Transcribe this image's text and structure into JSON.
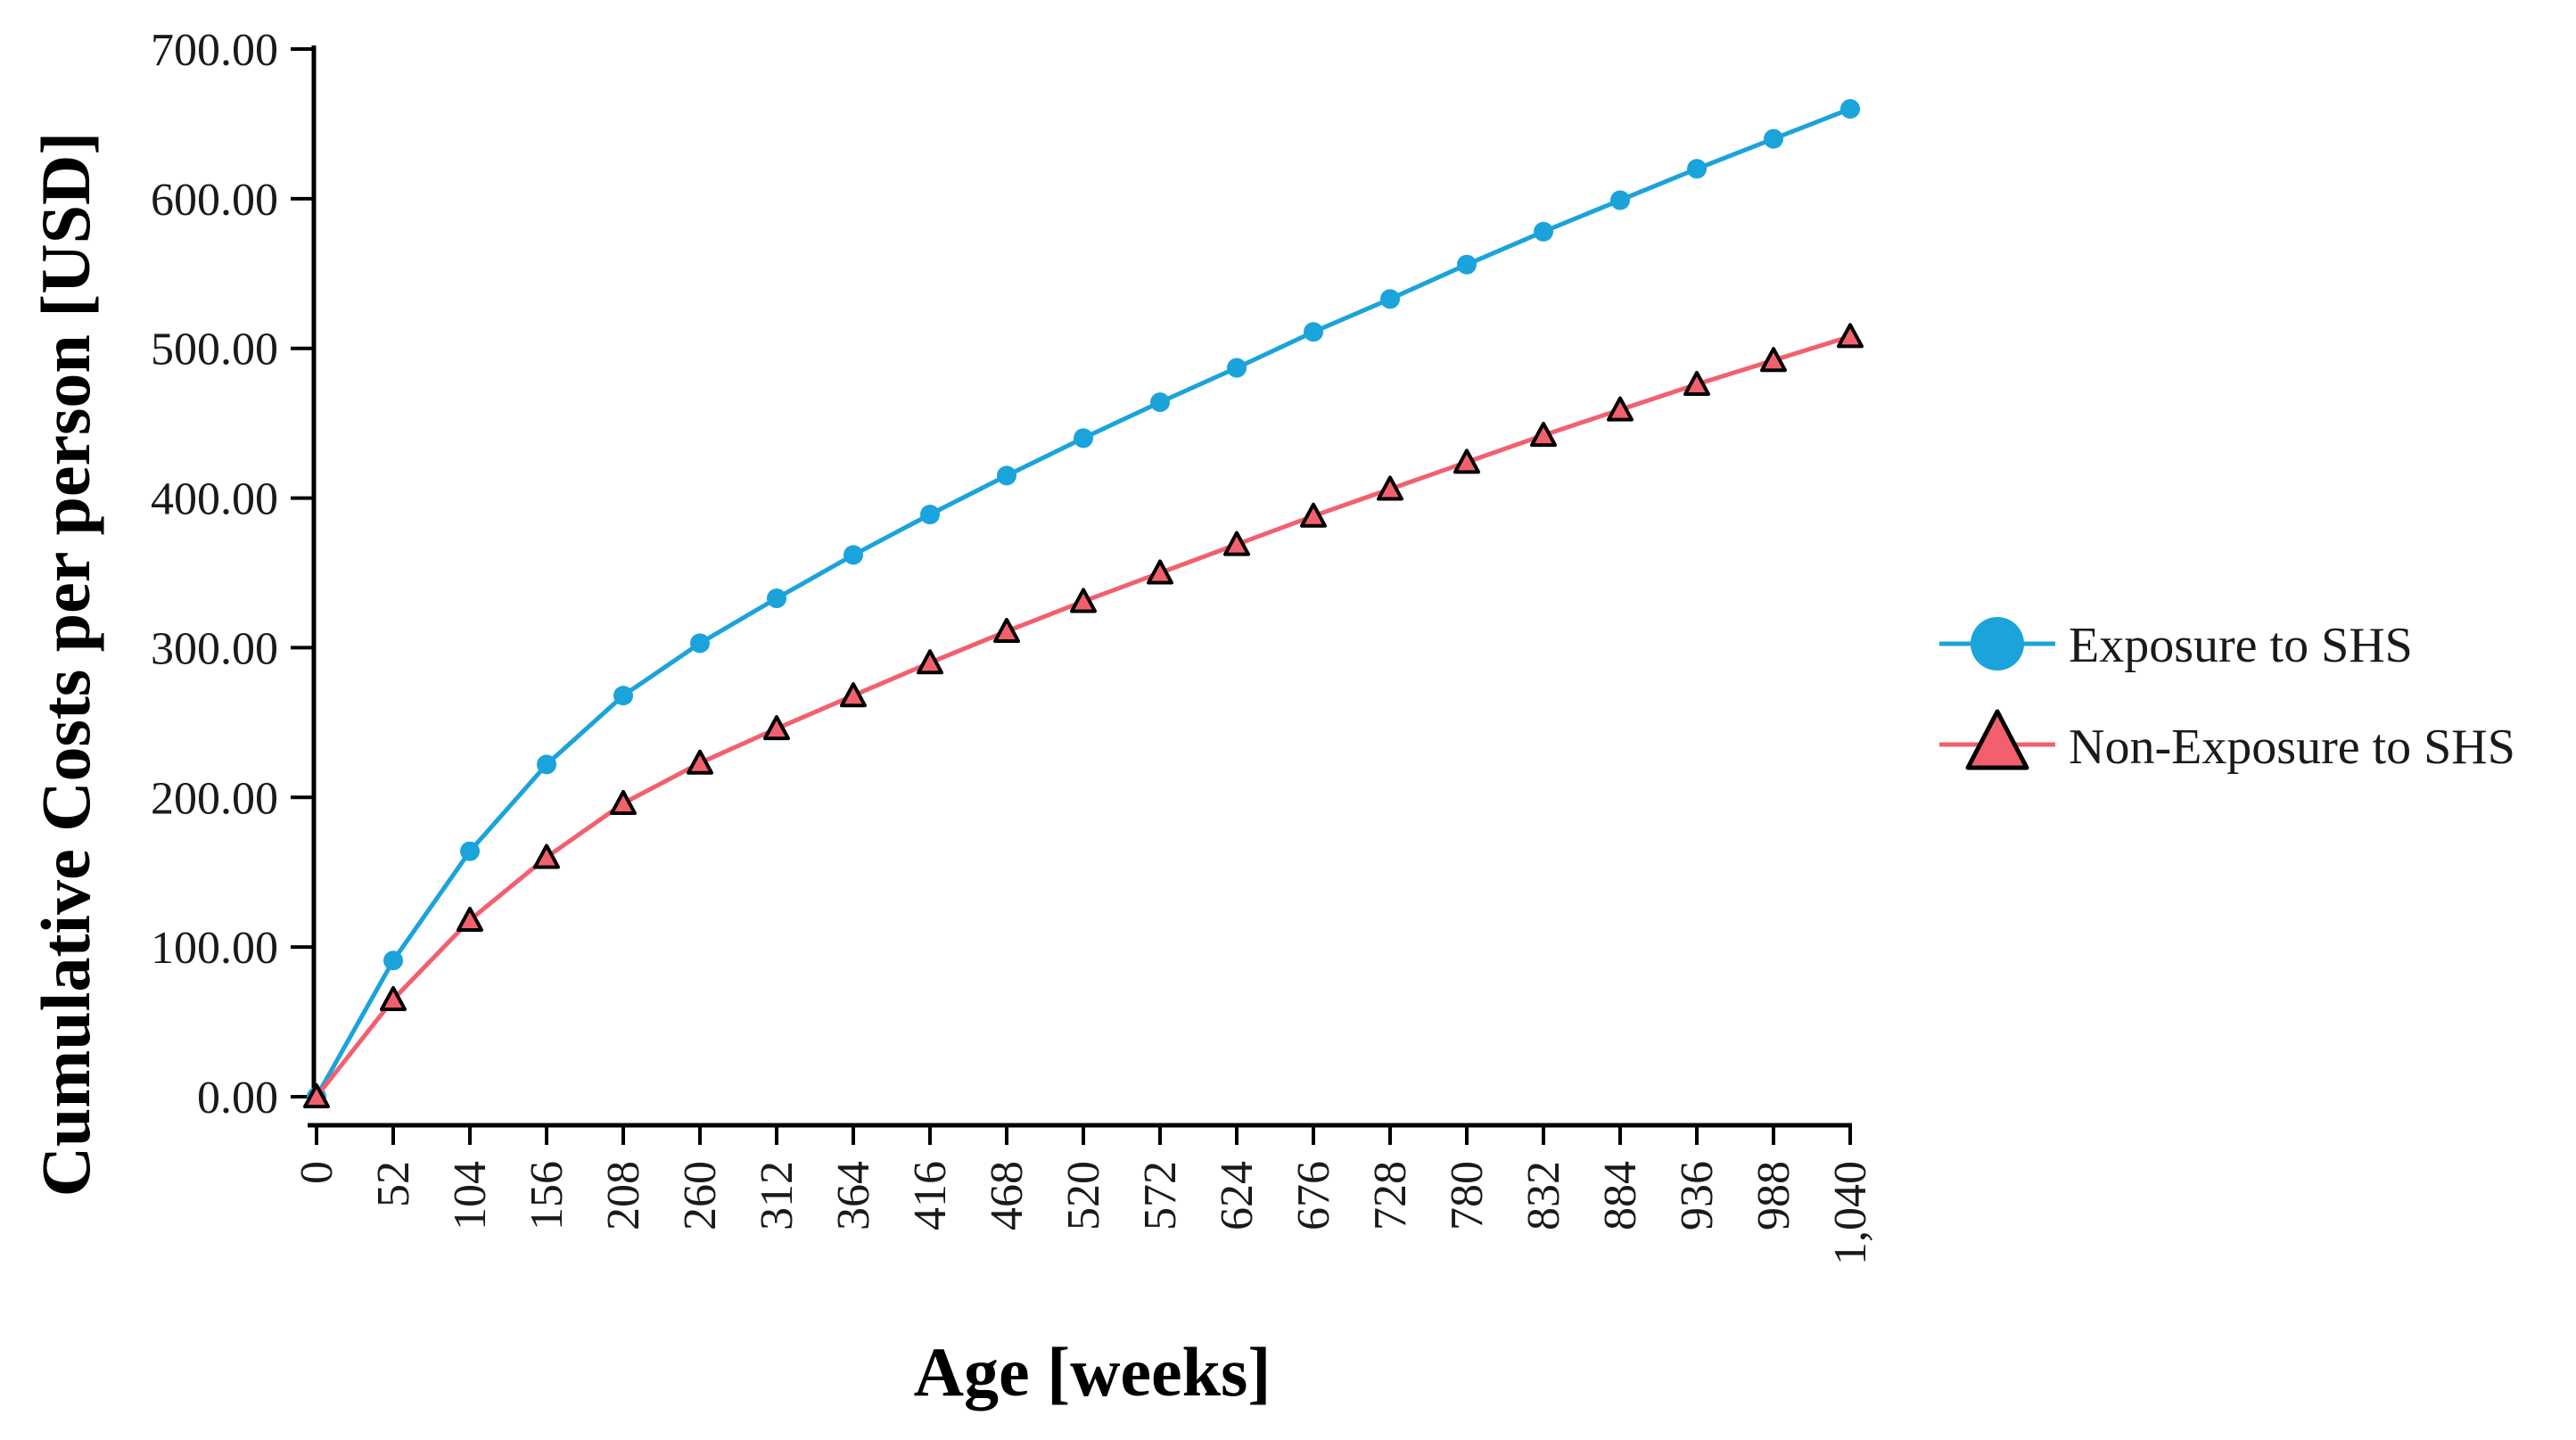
{
  "chart_data": {
    "type": "line",
    "title": "",
    "xlabel": "Age [weeks]",
    "ylabel": "Cumulative Costs per person [USD]",
    "x": [
      0,
      52,
      104,
      156,
      208,
      260,
      312,
      364,
      416,
      468,
      520,
      572,
      624,
      676,
      728,
      780,
      832,
      884,
      936,
      988,
      1040
    ],
    "x_tick_labels": [
      "0",
      "52",
      "104",
      "156",
      "208",
      "260",
      "312",
      "364",
      "416",
      "468",
      "520",
      "572",
      "624",
      "676",
      "728",
      "780",
      "832",
      "884",
      "936",
      "988",
      "1,040"
    ],
    "xlim": [
      0,
      1040
    ],
    "ylim": [
      0,
      700
    ],
    "y_ticks": [
      0,
      100,
      200,
      300,
      400,
      500,
      600,
      700
    ],
    "y_tick_labels": [
      "0.00",
      "100.00",
      "200.00",
      "300.00",
      "400.00",
      "500.00",
      "600.00",
      "700.00"
    ],
    "grid": false,
    "legend_position": "right",
    "series": [
      {
        "name": "Exposure to SHS",
        "marker": "circle",
        "color": "#1BA3DB",
        "values": [
          0,
          91,
          164,
          222,
          268,
          303,
          333,
          362,
          389,
          415,
          440,
          464,
          487,
          511,
          533,
          556,
          578,
          599,
          620,
          640,
          660
        ]
      },
      {
        "name": "Non-Exposure to SHS",
        "marker": "triangle",
        "color": "#F2606E",
        "values": [
          0,
          65,
          118,
          160,
          196,
          223,
          246,
          268,
          290,
          311,
          331,
          350,
          369,
          388,
          406,
          424,
          442,
          459,
          476,
          492,
          508
        ]
      }
    ]
  }
}
